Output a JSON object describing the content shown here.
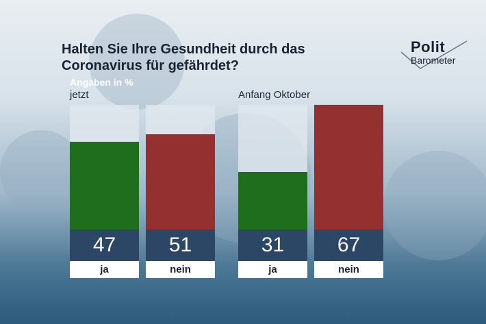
{
  "title": "Halten Sie Ihre Gesundheit durch das Coronavirus für gefährdet?",
  "subtitle": "Angaben in %",
  "logo": {
    "line1": "Polit",
    "line2": "Barometer"
  },
  "colors": {
    "ja": "#1e6e1e",
    "nein": "#953030",
    "value_bg": "#2c4766"
  },
  "chart_data": [
    {
      "type": "bar",
      "title": "jetzt",
      "categories": [
        "ja",
        "nein"
      ],
      "values": [
        47,
        51
      ],
      "ylim": [
        0,
        67
      ]
    },
    {
      "type": "bar",
      "title": "Anfang Oktober",
      "categories": [
        "ja",
        "nein"
      ],
      "values": [
        31,
        67
      ],
      "ylim": [
        0,
        67
      ]
    }
  ]
}
